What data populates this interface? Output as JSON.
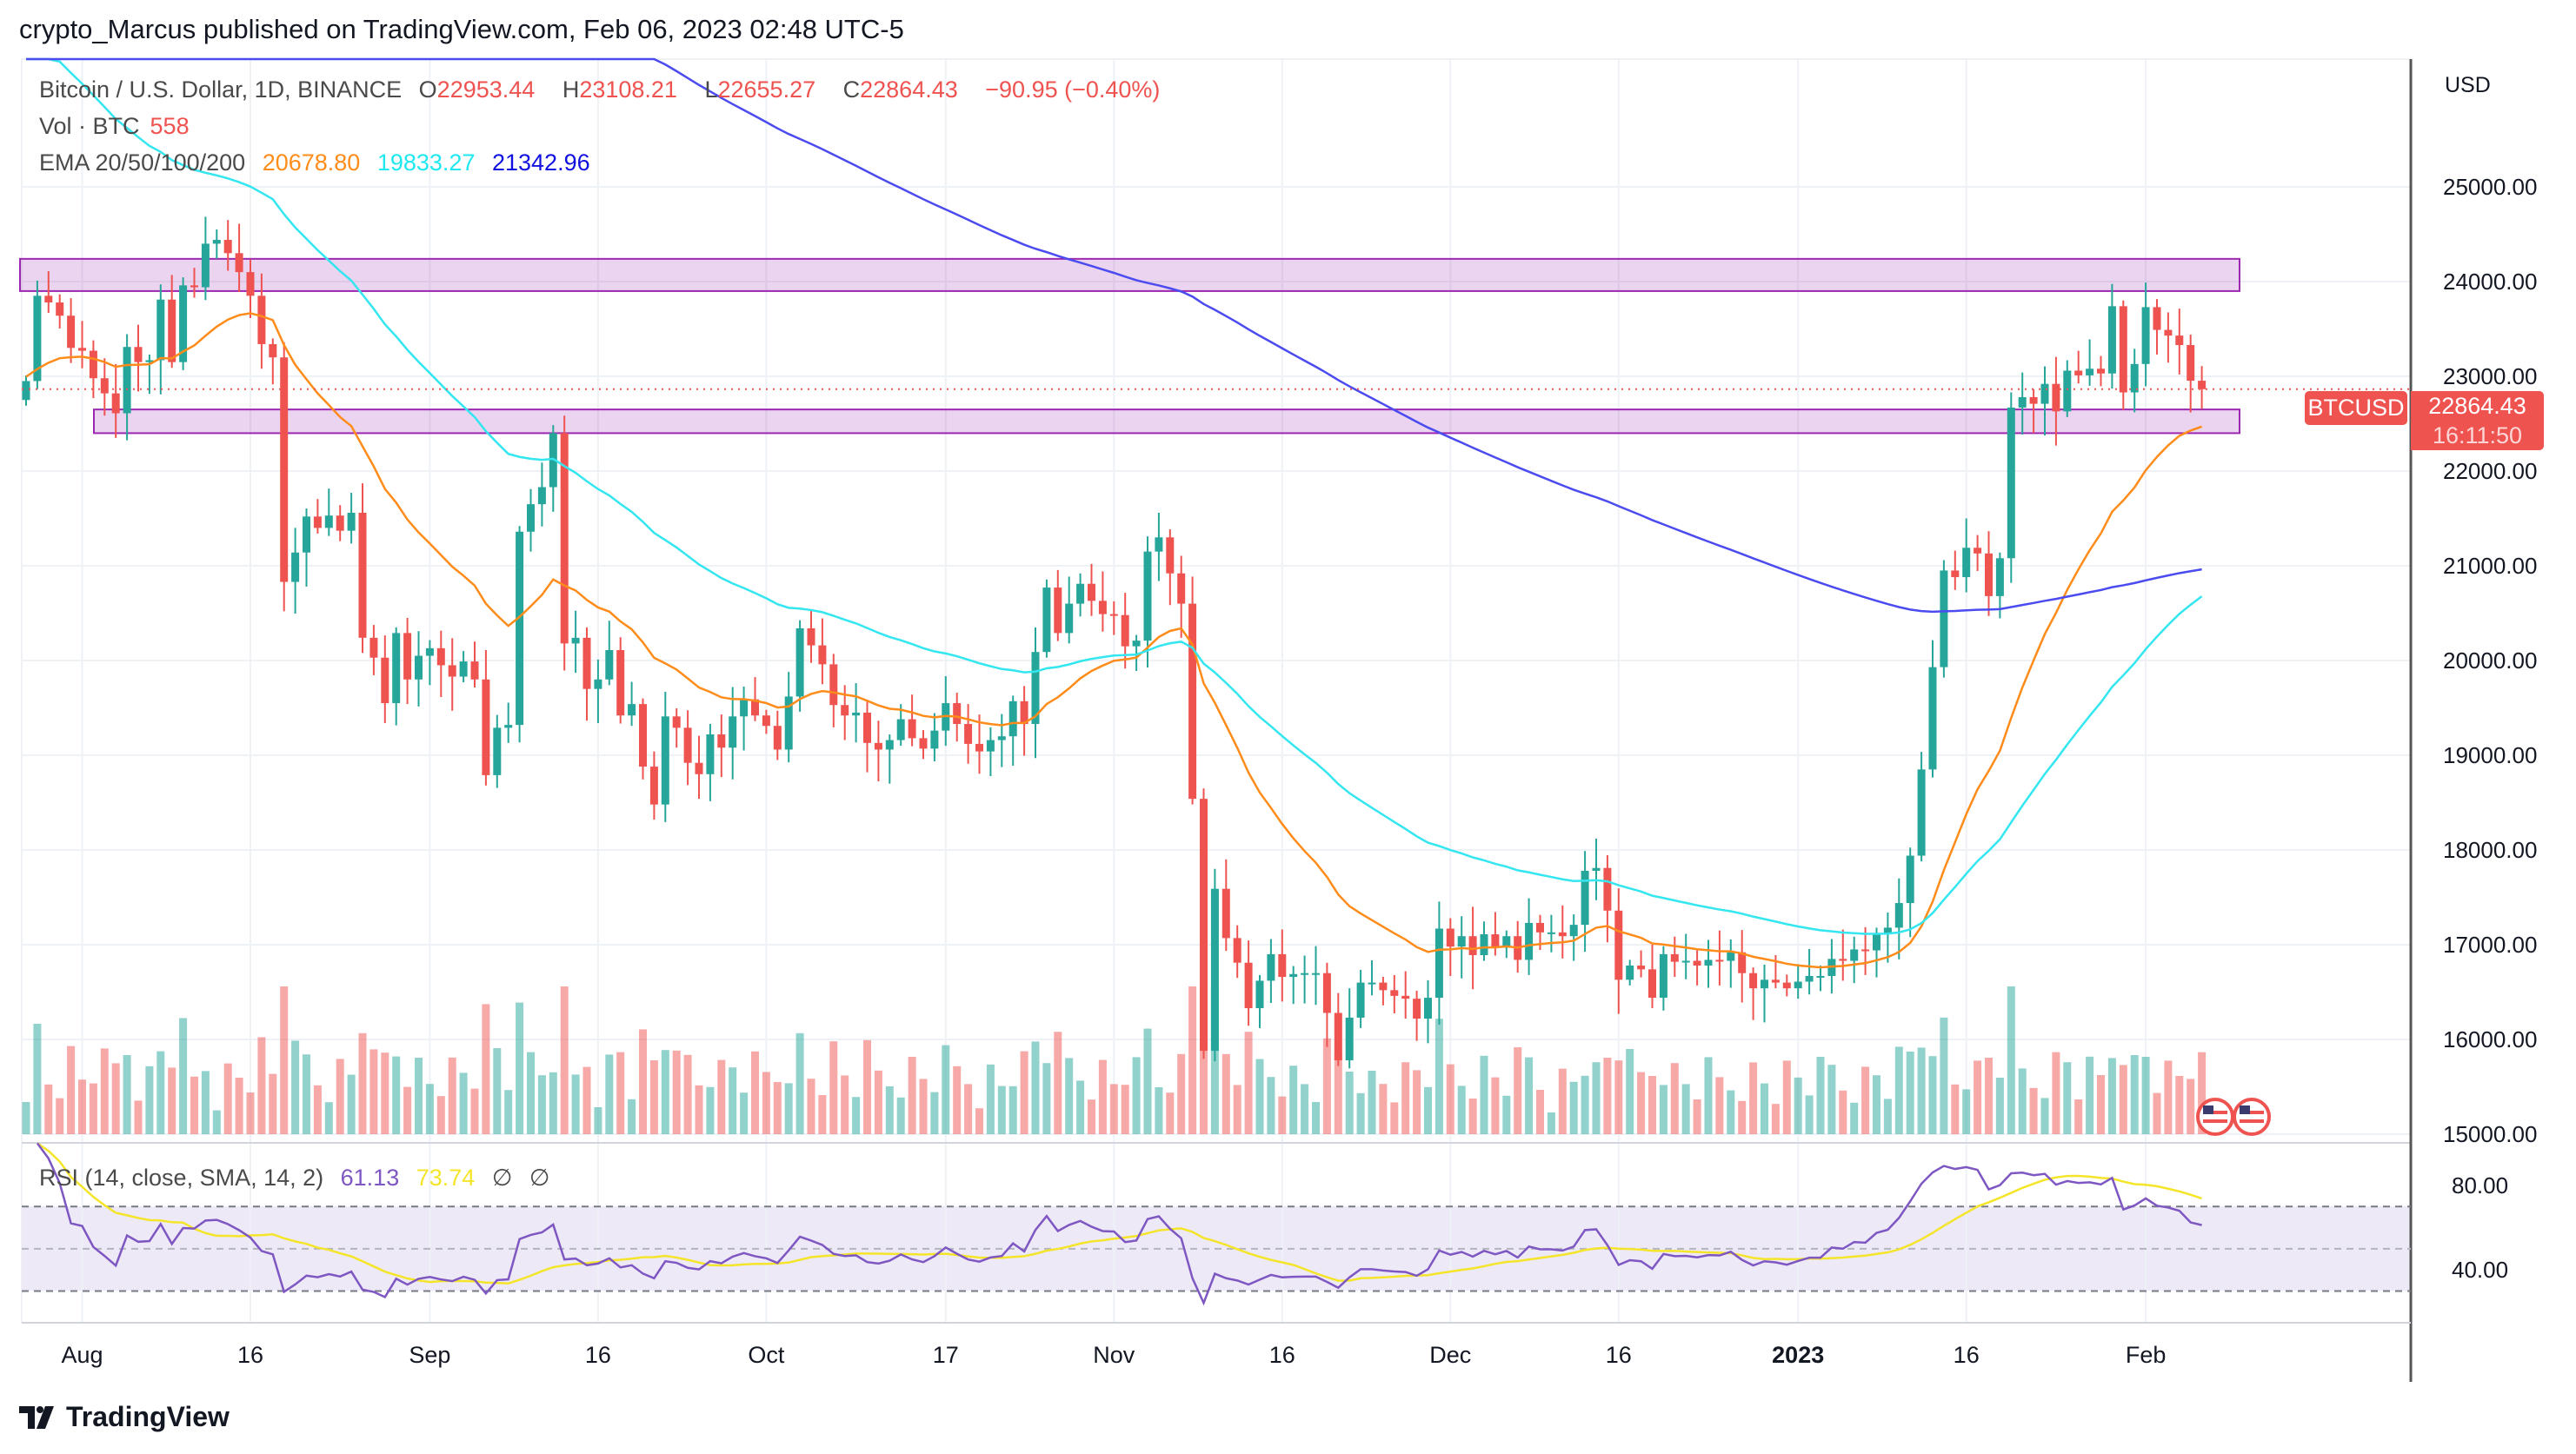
{
  "publisher_line": "crypto_Marcus published on TradingView.com, Feb 06, 2023 02:48 UTC-5",
  "legend": {
    "symbol": "Bitcoin / U.S. Dollar, 1D, BINANCE",
    "o_label": "O",
    "open": "22953.44",
    "h_label": "H",
    "high": "23108.21",
    "l_label": "L",
    "low": "22655.27",
    "c_label": "C",
    "close": "22864.43",
    "change": "−90.95 (−0.40%)",
    "vol_label": "Vol · BTC",
    "vol_value": "558",
    "ema_label": "EMA 20/50/100/200",
    "ema_values": [
      "20678.80",
      "19833.27",
      "21342.96"
    ],
    "rsi_label": "RSI (14, close, SMA, 14, 2)",
    "rsi_value": "61.13",
    "rsi_sma_value": "73.74",
    "rsi_extra": [
      "∅",
      "∅"
    ]
  },
  "price_axis": {
    "currency": "USD",
    "ticks": [
      "25000.00",
      "24000.00",
      "23000.00",
      "22000.00",
      "21000.00",
      "20000.00",
      "19000.00",
      "18000.00",
      "17000.00",
      "16000.00",
      "15000.00"
    ]
  },
  "rsi_axis": {
    "ticks": [
      "80.00",
      "40.00"
    ]
  },
  "symbol_tag": "BTCUSD",
  "last_price_tag": "22864.43",
  "countdown": "16:11:50",
  "time_axis": [
    "Aug",
    "16",
    "Sep",
    "16",
    "Oct",
    "17",
    "Nov",
    "16",
    "Dec",
    "16",
    "2023",
    "16",
    "Feb"
  ],
  "logo_text": "TradingView",
  "colors": {
    "up": "#26a69a",
    "down": "#ef5350",
    "ema20": "#ff8c1a",
    "ema50": "#33e6f0",
    "ema200": "#4b4bf0",
    "rsi": "#7e57c2",
    "rsi_sma": "#f5e52a",
    "zone": "#9c27b0"
  },
  "chart_data": {
    "type": "candlestick",
    "symbol": "BTCUSD",
    "interval": "1D",
    "start_date": "2022-07-27",
    "end_date": "2023-02-06",
    "ylim": [
      15000,
      25500
    ],
    "closes": [
      22950,
      23850,
      23780,
      23640,
      23300,
      23270,
      22980,
      22820,
      22610,
      23310,
      23150,
      23170,
      23810,
      23150,
      23960,
      23940,
      24400,
      24440,
      24300,
      24100,
      23850,
      23340,
      23200,
      20830,
      21140,
      21520,
      21400,
      21530,
      21370,
      21560,
      20240,
      20030,
      19550,
      20290,
      19800,
      20050,
      20130,
      19950,
      19830,
      19990,
      19800,
      18790,
      19290,
      19320,
      21360,
      21650,
      21830,
      22400,
      20180,
      20240,
      19700,
      19800,
      20110,
      19420,
      19540,
      18880,
      18480,
      19410,
      19290,
      18920,
      18800,
      19220,
      19080,
      19410,
      19590,
      19420,
      19310,
      19060,
      19620,
      20340,
      20160,
      19960,
      19530,
      19420,
      19450,
      19130,
      19060,
      19160,
      19380,
      19180,
      19070,
      19260,
      19550,
      19330,
      19120,
      19040,
      19160,
      19200,
      19570,
      19330,
      20090,
      20770,
      20290,
      20600,
      20810,
      20630,
      20490,
      20480,
      20150,
      20210,
      21150,
      21300,
      20920,
      20600,
      18540,
      15880,
      17590,
      17070,
      16810,
      16330,
      16620,
      16900,
      16660,
      16690,
      16700,
      16700,
      16280,
      15780,
      16230,
      16600,
      16600,
      16520,
      16460,
      16430,
      16220,
      16440,
      17170,
      16980,
      17090,
      16890,
      17110,
      16970,
      17090,
      16840,
      17230,
      17130,
      17130,
      17090,
      17210,
      17780,
      17810,
      17360,
      16630,
      16780,
      16740,
      16440,
      16900,
      16820,
      16830,
      16780,
      16840,
      16830,
      16920,
      16700,
      16540,
      16630,
      16600,
      16540,
      16610,
      16670,
      16670,
      16850,
      16830,
      16950,
      16940,
      17120,
      17180,
      17440,
      17940,
      18850,
      19930,
      20950,
      20880,
      21190,
      21130,
      20680,
      21080,
      22670,
      22780,
      22710,
      22920,
      22630,
      23060,
      23010,
      23080,
      23030,
      23740,
      22830,
      23130,
      23730,
      23490,
      23430,
      23330,
      22953.44,
      22864.43
    ],
    "last_candle": {
      "open": 22953.44,
      "high": 23108.21,
      "low": 22655.27,
      "close": 22864.43
    },
    "zones": [
      {
        "top": 24240,
        "bottom": 23900
      },
      {
        "top": 22650,
        "bottom": 22400
      }
    ],
    "emas": [
      {
        "period": 20,
        "last": 20678.8
      },
      {
        "period": 50,
        "last": 19833.27
      },
      {
        "period": 200,
        "last": 21342.96
      }
    ],
    "rsi": {
      "period": 14,
      "last": 61.13,
      "sma_last": 73.74,
      "bands": [
        70,
        50,
        30
      ],
      "ylim": [
        20,
        90
      ]
    }
  }
}
